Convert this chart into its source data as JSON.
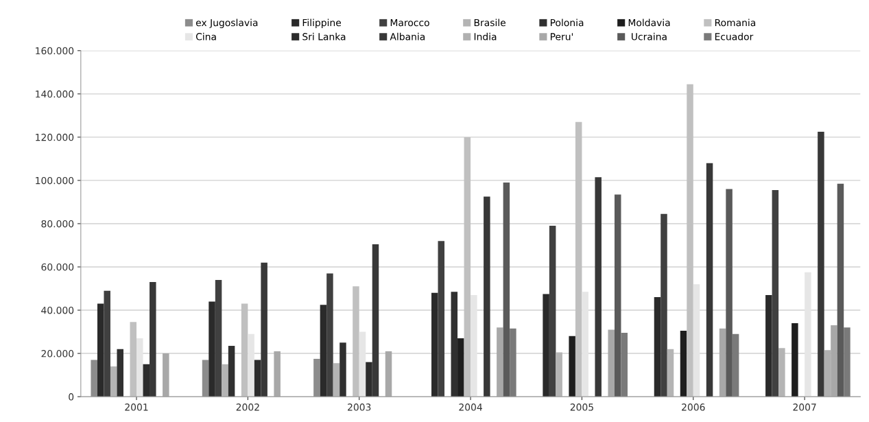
{
  "chart_data": {
    "type": "bar",
    "categories": [
      "2001",
      "2002",
      "2003",
      "2004",
      "2005",
      "2006",
      "2007"
    ],
    "series": [
      {
        "name": "ex Jugoslavia",
        "color": "#8c8c8c",
        "values": [
          17000,
          17000,
          17500,
          null,
          null,
          null,
          null
        ]
      },
      {
        "name": "Filippine",
        "color": "#2a2a2a",
        "values": [
          43000,
          44000,
          42500,
          48000,
          47500,
          46000,
          47000
        ]
      },
      {
        "name": "Marocco",
        "color": "#404040",
        "values": [
          49000,
          54000,
          57000,
          72000,
          79000,
          84500,
          95500
        ]
      },
      {
        "name": "Brasile",
        "color": "#b4b4b4",
        "values": [
          14000,
          15000,
          15500,
          null,
          20500,
          22000,
          22500
        ]
      },
      {
        "name": "Polonia",
        "color": "#303030",
        "values": [
          22000,
          23500,
          25000,
          48500,
          null,
          null,
          null
        ]
      },
      {
        "name": "Moldavia",
        "color": "#1e1e1e",
        "values": [
          null,
          null,
          null,
          27000,
          28000,
          30500,
          34000
        ]
      },
      {
        "name": "Romania",
        "color": "#c0c0c0",
        "values": [
          34500,
          43000,
          51000,
          120000,
          127000,
          144500,
          null
        ]
      },
      {
        "name": "Cina",
        "color": "#e6e6e6",
        "values": [
          27000,
          29000,
          30000,
          47000,
          48500,
          52000,
          57500
        ]
      },
      {
        "name": "Sri Lanka",
        "color": "#2c2c2c",
        "values": [
          15000,
          17000,
          16000,
          null,
          null,
          null,
          null
        ]
      },
      {
        "name": "Albania",
        "color": "#383838",
        "values": [
          53000,
          62000,
          70500,
          92500,
          101500,
          108000,
          122500
        ]
      },
      {
        "name": "India",
        "color": "#b0b0b0",
        "values": [
          null,
          null,
          null,
          null,
          null,
          null,
          21500
        ]
      },
      {
        "name": "Peru'",
        "color": "#a8a8a8",
        "values": [
          20000,
          21000,
          21000,
          32000,
          31000,
          31500,
          33000
        ]
      },
      {
        "name": " Ucraina",
        "color": "#5a5a5a",
        "values": [
          null,
          null,
          null,
          99000,
          93500,
          96000,
          98500
        ]
      },
      {
        "name": "Ecuador",
        "color": "#7a7a7a",
        "values": [
          null,
          null,
          null,
          31500,
          29500,
          29000,
          32000
        ]
      }
    ],
    "ylim": [
      0,
      160000
    ],
    "yticks": [
      {
        "value": 0,
        "label": "0"
      },
      {
        "value": 20000,
        "label": "20.000"
      },
      {
        "value": 40000,
        "label": "40.000"
      },
      {
        "value": 60000,
        "label": "60.000"
      },
      {
        "value": 80000,
        "label": "80.000"
      },
      {
        "value": 100000,
        "label": "100.000"
      },
      {
        "value": 120000,
        "label": "120.000"
      },
      {
        "value": 140000,
        "label": "140.000"
      },
      {
        "value": 160000,
        "label": "160.000"
      }
    ],
    "grid": "y",
    "legend": "top"
  }
}
